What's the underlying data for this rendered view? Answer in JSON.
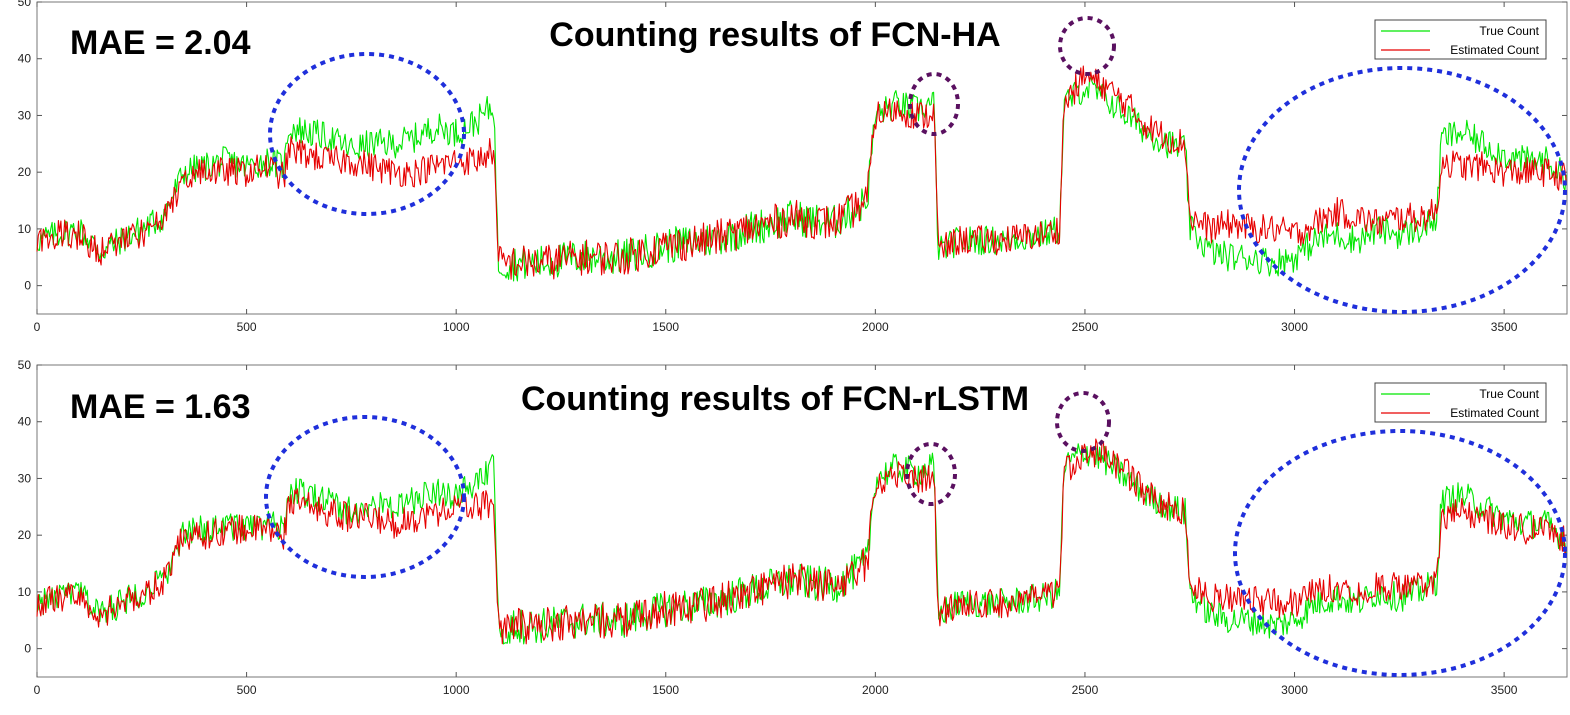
{
  "chart_data": [
    {
      "type": "line",
      "title": "Counting results of FCN-HA",
      "annotation": "MAE = 2.04",
      "xlim": [
        0,
        3650
      ],
      "ylim": [
        -5,
        50
      ],
      "xticks": [
        0,
        500,
        1000,
        1500,
        2000,
        2500,
        3000,
        3500
      ],
      "yticks": [
        0,
        10,
        20,
        30,
        40,
        50
      ],
      "legend_position": "top-right",
      "series": [
        {
          "name": "True Count",
          "color": "#00e600",
          "x": [
            0,
            50,
            100,
            150,
            200,
            250,
            300,
            350,
            400,
            450,
            500,
            550,
            590,
            600,
            650,
            700,
            750,
            800,
            850,
            900,
            950,
            1000,
            1050,
            1090,
            1100,
            1150,
            1200,
            1300,
            1400,
            1500,
            1600,
            1700,
            1800,
            1900,
            1980,
            2000,
            2050,
            2100,
            2130,
            2140,
            2150,
            2200,
            2300,
            2400,
            2440,
            2450,
            2500,
            2550,
            2600,
            2650,
            2700,
            2740,
            2750,
            2800,
            2850,
            2900,
            2950,
            3000,
            3050,
            3100,
            3150,
            3200,
            3250,
            3300,
            3340,
            3350,
            3400,
            3450,
            3500,
            3550,
            3600,
            3650
          ],
          "y": [
            8,
            9,
            10,
            6,
            8,
            10,
            12,
            20,
            21,
            22,
            21,
            22,
            21,
            28,
            27,
            26,
            24,
            25,
            25,
            26,
            28,
            27,
            29,
            32,
            4,
            4,
            4,
            5,
            5,
            7,
            8,
            10,
            12,
            11,
            15,
            30,
            32,
            31,
            32,
            32,
            6,
            8,
            8,
            9,
            10,
            32,
            35,
            33,
            30,
            27,
            25,
            24,
            10,
            6,
            5,
            5,
            4,
            5,
            8,
            9,
            8,
            10,
            9,
            10,
            12,
            26,
            27,
            25,
            23,
            22,
            22,
            19
          ]
        },
        {
          "name": "Estimated Count",
          "color": "#e60000",
          "x": [
            0,
            50,
            100,
            150,
            200,
            250,
            300,
            350,
            400,
            450,
            500,
            550,
            590,
            600,
            650,
            700,
            750,
            800,
            850,
            900,
            950,
            1000,
            1050,
            1090,
            1100,
            1150,
            1200,
            1300,
            1400,
            1500,
            1600,
            1700,
            1800,
            1900,
            1980,
            2000,
            2050,
            2100,
            2130,
            2140,
            2150,
            2200,
            2300,
            2400,
            2440,
            2450,
            2500,
            2550,
            2600,
            2650,
            2700,
            2740,
            2750,
            2800,
            2850,
            2900,
            2950,
            3000,
            3050,
            3100,
            3150,
            3200,
            3250,
            3300,
            3340,
            3350,
            3400,
            3450,
            3500,
            3550,
            3600,
            3650
          ],
          "y": [
            8,
            9,
            9,
            6,
            8,
            9,
            11,
            19,
            20,
            20,
            20,
            21,
            19,
            24,
            23,
            22,
            22,
            21,
            20,
            20,
            21,
            22,
            22,
            24,
            4,
            4,
            4,
            5,
            5,
            7,
            8,
            10,
            12,
            11,
            15,
            30,
            31,
            30,
            30,
            31,
            6,
            8,
            8,
            9,
            10,
            32,
            37,
            35,
            32,
            28,
            26,
            25,
            12,
            10,
            11,
            10,
            10,
            9,
            11,
            13,
            12,
            11,
            12,
            12,
            13,
            22,
            21,
            21,
            20,
            20,
            20,
            19
          ]
        }
      ]
    },
    {
      "type": "line",
      "title": "Counting results of FCN-rLSTM",
      "annotation": "MAE = 1.63",
      "xlim": [
        0,
        3650
      ],
      "ylim": [
        -5,
        50
      ],
      "xticks": [
        0,
        500,
        1000,
        1500,
        2000,
        2500,
        3000,
        3500
      ],
      "yticks": [
        0,
        10,
        20,
        30,
        40,
        50
      ],
      "legend_position": "top-right",
      "series": [
        {
          "name": "True Count",
          "color": "#00e600",
          "x": [
            0,
            50,
            100,
            150,
            200,
            250,
            300,
            350,
            400,
            450,
            500,
            550,
            590,
            600,
            650,
            700,
            750,
            800,
            850,
            900,
            950,
            1000,
            1050,
            1090,
            1100,
            1150,
            1200,
            1300,
            1400,
            1500,
            1600,
            1700,
            1800,
            1900,
            1980,
            2000,
            2050,
            2100,
            2130,
            2140,
            2150,
            2200,
            2300,
            2400,
            2440,
            2450,
            2500,
            2550,
            2600,
            2650,
            2700,
            2740,
            2750,
            2800,
            2850,
            2900,
            2950,
            3000,
            3050,
            3100,
            3150,
            3200,
            3250,
            3300,
            3340,
            3350,
            3400,
            3450,
            3500,
            3550,
            3600,
            3650
          ],
          "y": [
            8,
            9,
            10,
            6,
            8,
            10,
            12,
            20,
            21,
            22,
            21,
            22,
            21,
            28,
            27,
            26,
            24,
            25,
            25,
            26,
            28,
            27,
            29,
            32,
            4,
            4,
            4,
            5,
            5,
            7,
            8,
            10,
            12,
            11,
            15,
            30,
            32,
            31,
            32,
            32,
            6,
            8,
            8,
            9,
            10,
            32,
            35,
            33,
            30,
            27,
            25,
            24,
            10,
            6,
            5,
            5,
            4,
            5,
            8,
            9,
            8,
            10,
            9,
            10,
            12,
            26,
            27,
            25,
            23,
            22,
            22,
            19
          ]
        },
        {
          "name": "Estimated Count",
          "color": "#e60000",
          "x": [
            0,
            50,
            100,
            150,
            200,
            250,
            300,
            350,
            400,
            450,
            500,
            550,
            590,
            600,
            650,
            700,
            750,
            800,
            850,
            900,
            950,
            1000,
            1050,
            1090,
            1100,
            1150,
            1200,
            1300,
            1400,
            1500,
            1600,
            1700,
            1800,
            1900,
            1980,
            2000,
            2050,
            2100,
            2130,
            2140,
            2150,
            2200,
            2300,
            2400,
            2440,
            2450,
            2500,
            2550,
            2600,
            2650,
            2700,
            2740,
            2750,
            2800,
            2850,
            2900,
            2950,
            3000,
            3050,
            3100,
            3150,
            3200,
            3250,
            3300,
            3340,
            3350,
            3400,
            3450,
            3500,
            3550,
            3600,
            3650
          ],
          "y": [
            8,
            9,
            9,
            6,
            8,
            9,
            12,
            20,
            20,
            21,
            21,
            21,
            20,
            26,
            25,
            24,
            23,
            23,
            22,
            23,
            24,
            25,
            25,
            26,
            4,
            4,
            4,
            5,
            5,
            7,
            8,
            10,
            12,
            11,
            15,
            29,
            31,
            30,
            30,
            31,
            6,
            8,
            8,
            9,
            10,
            31,
            35,
            34,
            31,
            27,
            25,
            24,
            11,
            9,
            9,
            9,
            8,
            8,
            10,
            11,
            10,
            11,
            11,
            11,
            12,
            23,
            24,
            23,
            22,
            21,
            21,
            19
          ]
        }
      ]
    }
  ]
}
